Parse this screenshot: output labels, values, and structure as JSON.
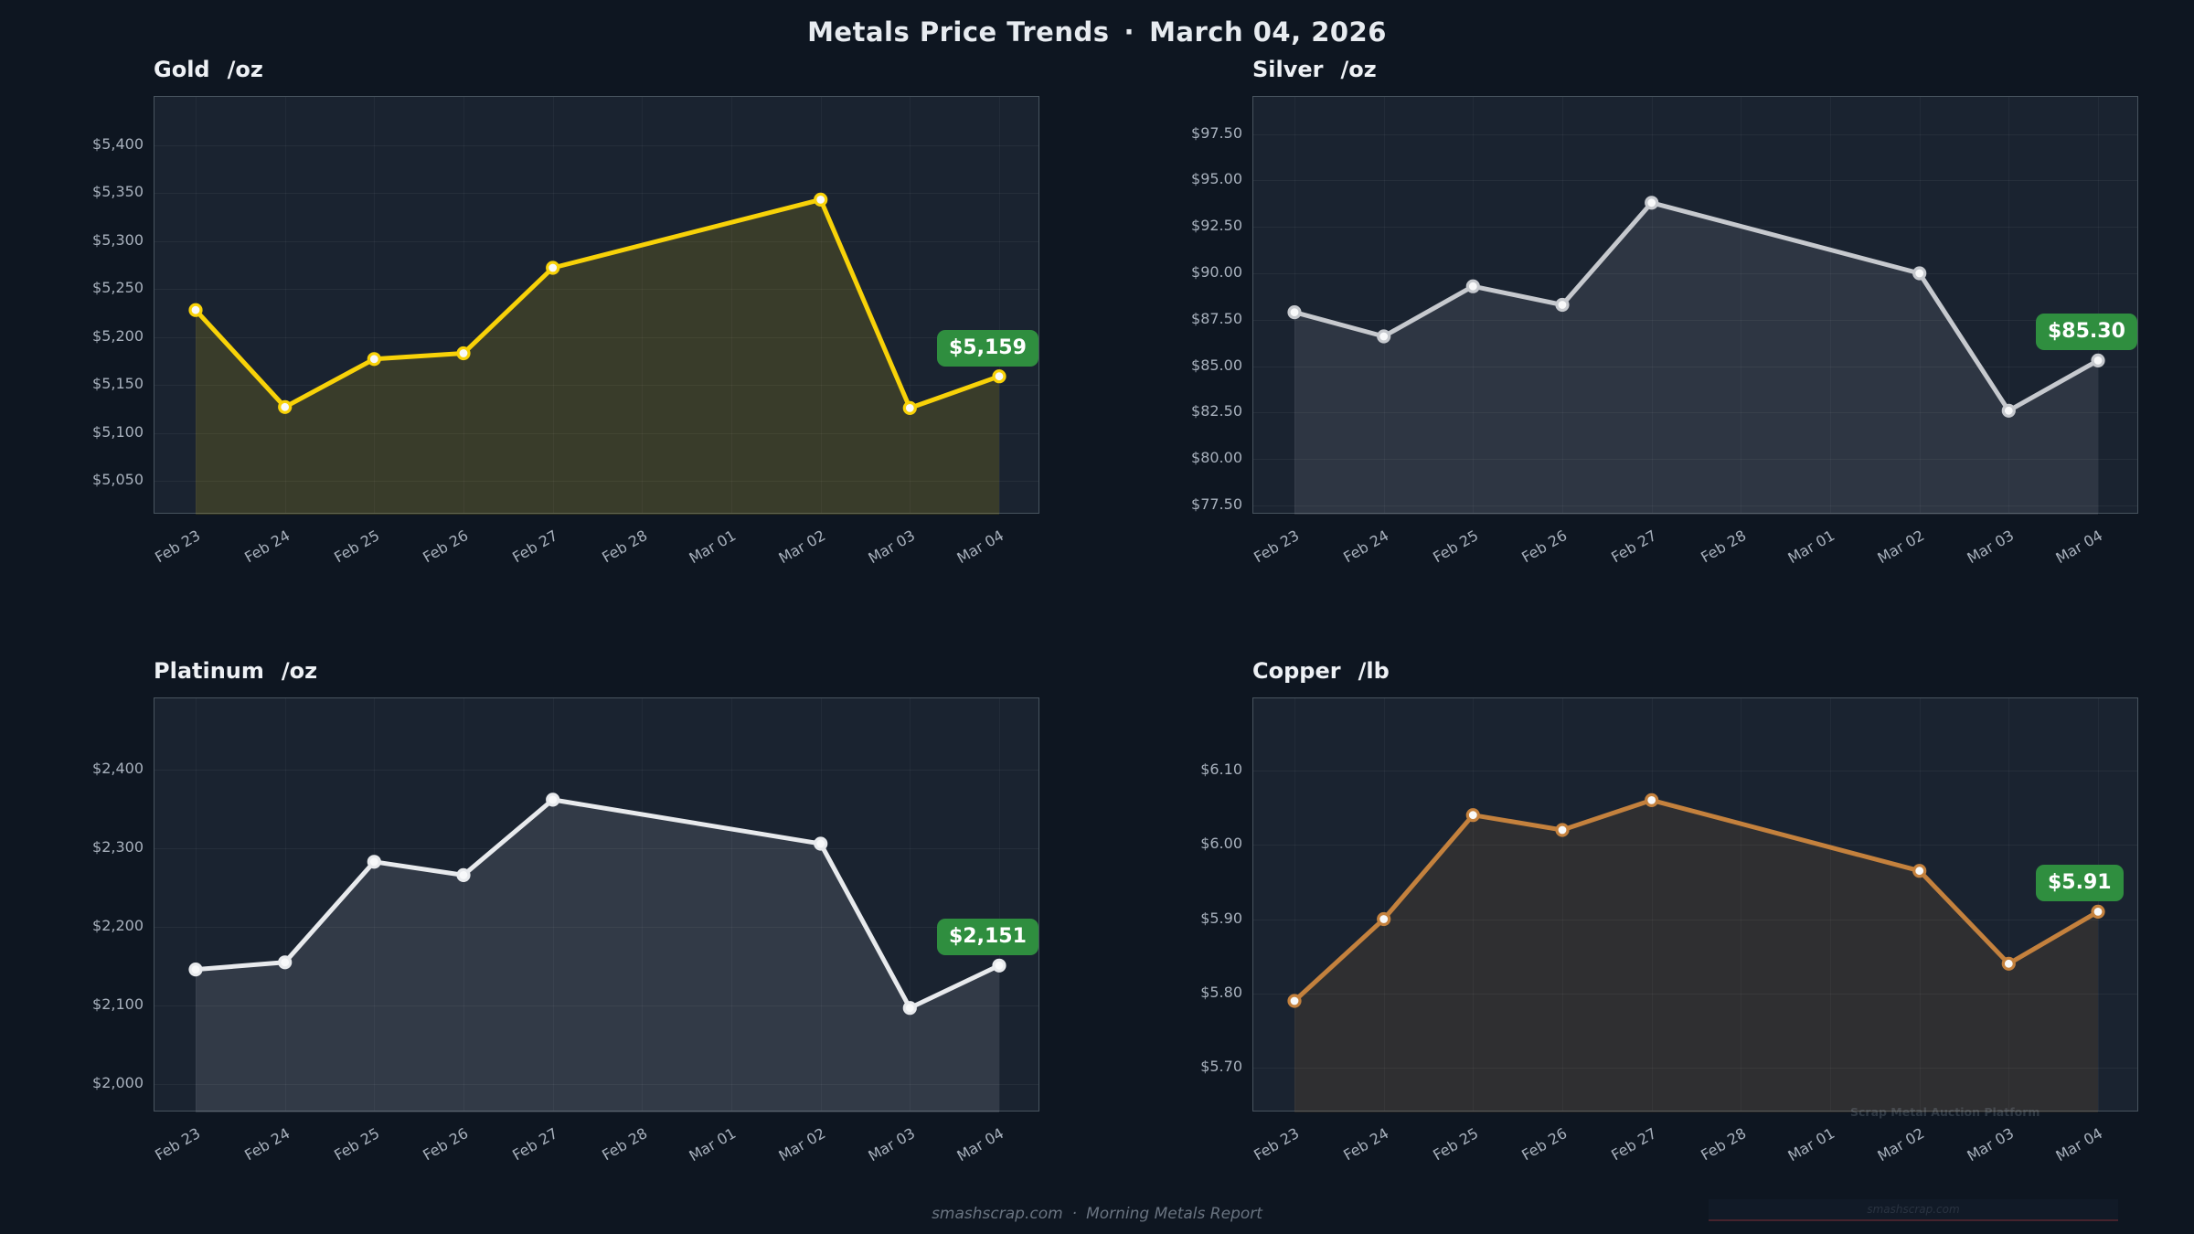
{
  "header": {
    "title": "Metals Price Trends",
    "separator": "·",
    "date": "March 04, 2026"
  },
  "footer": {
    "site": "smashscrap.com",
    "separator": "·",
    "report": "Morning Metals Report"
  },
  "watermark": {
    "line1": "Scrap Metal Auction Platform",
    "line2": "smashscrap.com"
  },
  "colors": {
    "badge_green": "#2f8e3f",
    "page_background": "#0e1621",
    "plot_background": "#1a2330"
  },
  "chart_data": [
    {
      "type": "area",
      "metal": "Gold",
      "unit": "/oz",
      "line_color": "#f8d208",
      "fill_opacity": 0.14,
      "x": [
        "Feb 23",
        "Feb 24",
        "Feb 25",
        "Feb 26",
        "Feb 27",
        "Feb 28",
        "Mar 01",
        "Mar 02",
        "Mar 03",
        "Mar 04"
      ],
      "values": [
        5228,
        5127,
        5177,
        5183,
        5272,
        null,
        null,
        5343,
        5126,
        5159
      ],
      "last_value_label": "$5,159",
      "ylim": [
        5015,
        5450
      ],
      "ytick_values": [
        5050,
        5100,
        5150,
        5200,
        5250,
        5300,
        5350,
        5400
      ],
      "ytick_labels": [
        "$5,050",
        "$5,100",
        "$5,150",
        "$5,200",
        "$5,250",
        "$5,300",
        "$5,350",
        "$5,400"
      ],
      "grid": true,
      "legend": false
    },
    {
      "type": "area",
      "metal": "Silver",
      "unit": "/oz",
      "line_color": "#c6c9ce",
      "fill_opacity": 0.12,
      "x": [
        "Feb 23",
        "Feb 24",
        "Feb 25",
        "Feb 26",
        "Feb 27",
        "Feb 28",
        "Mar 01",
        "Mar 02",
        "Mar 03",
        "Mar 04"
      ],
      "values": [
        87.9,
        86.6,
        89.3,
        88.3,
        93.8,
        null,
        null,
        90.0,
        82.6,
        85.3
      ],
      "last_value_label": "$85.30",
      "ylim": [
        77.0,
        99.5
      ],
      "ytick_values": [
        77.5,
        80.0,
        82.5,
        85.0,
        87.5,
        90.0,
        92.5,
        95.0,
        97.5
      ],
      "ytick_labels": [
        "$77.50",
        "$80.00",
        "$82.50",
        "$85.00",
        "$87.50",
        "$90.00",
        "$92.50",
        "$95.00",
        "$97.50"
      ],
      "grid": true,
      "legend": false
    },
    {
      "type": "area",
      "metal": "Platinum",
      "unit": "/oz",
      "line_color": "#e8eaed",
      "fill_opacity": 0.12,
      "x": [
        "Feb 23",
        "Feb 24",
        "Feb 25",
        "Feb 26",
        "Feb 27",
        "Feb 28",
        "Mar 01",
        "Mar 02",
        "Mar 03",
        "Mar 04"
      ],
      "values": [
        2146,
        2155,
        2283,
        2266,
        2362,
        null,
        null,
        2306,
        2097,
        2151
      ],
      "last_value_label": "$2,151",
      "ylim": [
        1964,
        2491
      ],
      "ytick_values": [
        2000,
        2100,
        2200,
        2300,
        2400
      ],
      "ytick_labels": [
        "$2,000",
        "$2,100",
        "$2,200",
        "$2,300",
        "$2,400"
      ],
      "grid": true,
      "legend": false
    },
    {
      "type": "area",
      "metal": "Copper",
      "unit": "/lb",
      "line_color": "#c4813d",
      "fill_opacity": 0.13,
      "x": [
        "Feb 23",
        "Feb 24",
        "Feb 25",
        "Feb 26",
        "Feb 27",
        "Feb 28",
        "Mar 01",
        "Mar 02",
        "Mar 03",
        "Mar 04"
      ],
      "values": [
        5.79,
        5.9,
        6.04,
        6.02,
        6.06,
        null,
        null,
        5.965,
        5.84,
        5.91
      ],
      "last_value_label": "$5.91",
      "ylim": [
        5.64,
        6.197
      ],
      "ytick_values": [
        5.7,
        5.8,
        5.9,
        6.0,
        6.1
      ],
      "ytick_labels": [
        "$5.70",
        "$5.80",
        "$5.90",
        "$6.00",
        "$6.10"
      ],
      "grid": true,
      "legend": false
    }
  ]
}
